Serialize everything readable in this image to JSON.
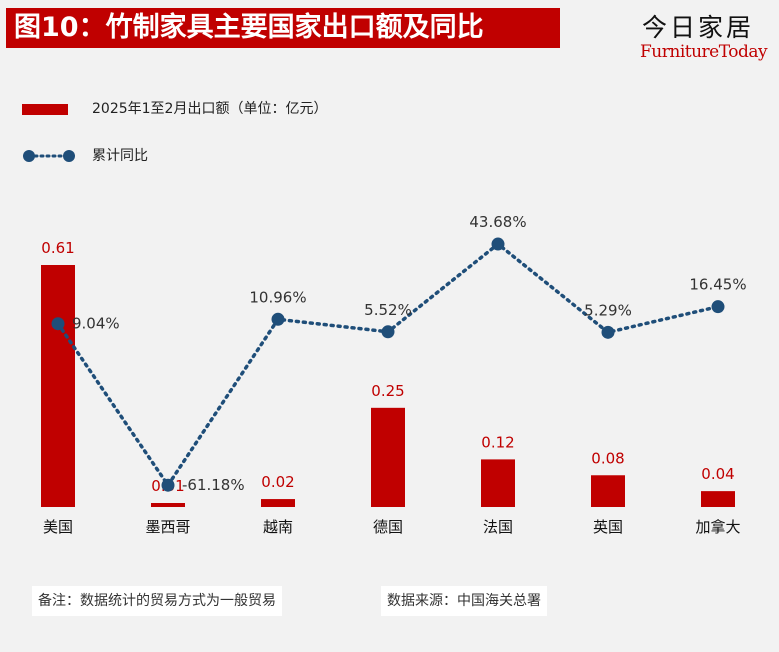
{
  "header": {
    "title": "图10：竹制家具主要国家出口额及同比",
    "brand_cn": "今日家居",
    "brand_en": "FurnitureToday"
  },
  "colors": {
    "bar": "#c00000",
    "line": "#1f4e79",
    "title_bg": "#c00000"
  },
  "chart_data": {
    "type": "bar",
    "categories": [
      "美国",
      "墨西哥",
      "越南",
      "德国",
      "法国",
      "英国",
      "加拿大"
    ],
    "series": [
      {
        "name": "2025年1至2月出口额（单位：亿元）",
        "type": "bar",
        "values": [
          0.61,
          0.01,
          0.02,
          0.25,
          0.12,
          0.08,
          0.04
        ],
        "labels": [
          "0.61",
          "0.01",
          "0.02",
          "0.25",
          "0.12",
          "0.08",
          "0.04"
        ]
      },
      {
        "name": "累计同比",
        "type": "line",
        "values": [
          9.04,
          -61.18,
          10.96,
          5.52,
          43.68,
          5.29,
          16.45
        ],
        "labels": [
          "9.04%",
          "-61.18%",
          "10.96%",
          "5.52%",
          "43.68%",
          "5.29%",
          "16.45%"
        ]
      }
    ],
    "legend_position": "top-left",
    "grid": false
  },
  "footer": {
    "note": "备注：数据统计的贸易方式为一般贸易",
    "source": "数据来源：中国海关总署"
  }
}
